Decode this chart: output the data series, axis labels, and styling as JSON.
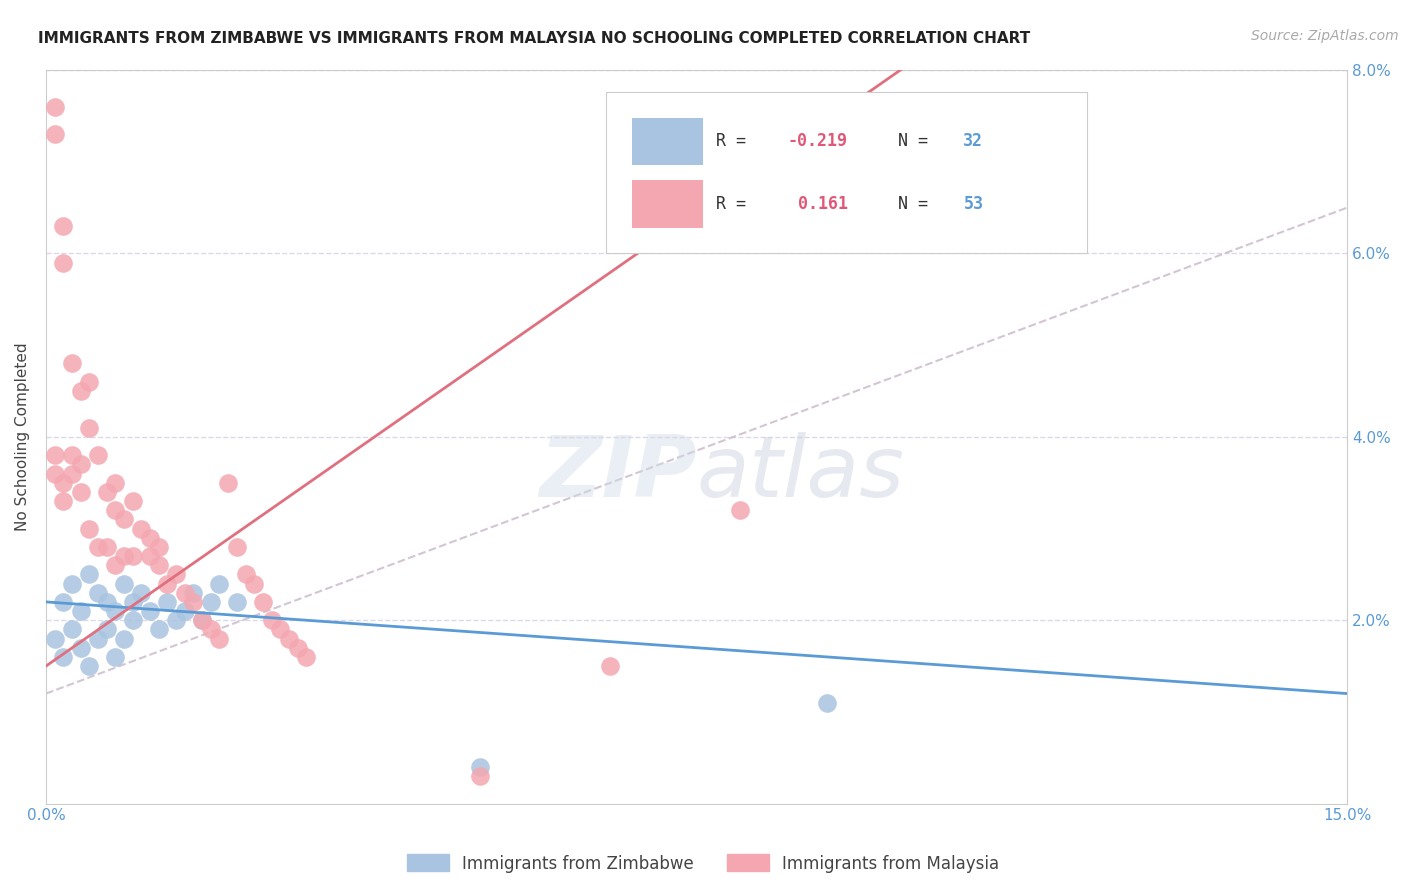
{
  "title": "IMMIGRANTS FROM ZIMBABWE VS IMMIGRANTS FROM MALAYSIA NO SCHOOLING COMPLETED CORRELATION CHART",
  "source": "Source: ZipAtlas.com",
  "ylabel": "No Schooling Completed",
  "xlim": [
    0.0,
    0.15
  ],
  "ylim": [
    0.0,
    0.08
  ],
  "xtick_vals": [
    0.0,
    0.15
  ],
  "xtick_labels": [
    "0.0%",
    "15.0%"
  ],
  "ytick_vals": [
    0.0,
    0.02,
    0.04,
    0.06,
    0.08
  ],
  "ytick_labels_left": [
    "",
    "",
    "",
    "",
    ""
  ],
  "ytick_labels_right": [
    "",
    "2.0%",
    "4.0%",
    "6.0%",
    "8.0%"
  ],
  "watermark": "ZIPatlas",
  "zimbabwe_color": "#a8c4e0",
  "malaysia_color": "#f4a7b0",
  "zimbabwe_line_color": "#5b9bd5",
  "malaysia_line_color": "#e07080",
  "dashed_line_color": "#c8b8c8",
  "background_color": "#ffffff",
  "grid_color": "#ddd8e8",
  "zimbabwe_x": [
    0.001,
    0.002,
    0.002,
    0.003,
    0.003,
    0.004,
    0.004,
    0.005,
    0.005,
    0.006,
    0.006,
    0.007,
    0.007,
    0.008,
    0.008,
    0.009,
    0.009,
    0.01,
    0.01,
    0.011,
    0.012,
    0.013,
    0.014,
    0.015,
    0.016,
    0.017,
    0.018,
    0.019,
    0.02,
    0.022,
    0.05,
    0.09
  ],
  "zimbabwe_y": [
    0.018,
    0.022,
    0.016,
    0.024,
    0.019,
    0.021,
    0.017,
    0.025,
    0.015,
    0.023,
    0.018,
    0.022,
    0.019,
    0.021,
    0.016,
    0.024,
    0.018,
    0.022,
    0.02,
    0.023,
    0.021,
    0.019,
    0.022,
    0.02,
    0.021,
    0.023,
    0.02,
    0.022,
    0.024,
    0.022,
    0.004,
    0.011
  ],
  "malaysia_x": [
    0.001,
    0.001,
    0.001,
    0.001,
    0.002,
    0.002,
    0.002,
    0.002,
    0.003,
    0.003,
    0.003,
    0.004,
    0.004,
    0.004,
    0.005,
    0.005,
    0.005,
    0.006,
    0.006,
    0.007,
    0.007,
    0.008,
    0.008,
    0.008,
    0.009,
    0.009,
    0.01,
    0.01,
    0.011,
    0.012,
    0.012,
    0.013,
    0.013,
    0.014,
    0.015,
    0.016,
    0.017,
    0.018,
    0.019,
    0.02,
    0.021,
    0.022,
    0.023,
    0.024,
    0.025,
    0.026,
    0.027,
    0.028,
    0.029,
    0.03,
    0.05,
    0.065,
    0.08
  ],
  "malaysia_y": [
    0.076,
    0.073,
    0.038,
    0.036,
    0.063,
    0.059,
    0.035,
    0.033,
    0.048,
    0.038,
    0.036,
    0.045,
    0.037,
    0.034,
    0.046,
    0.041,
    0.03,
    0.038,
    0.028,
    0.034,
    0.028,
    0.035,
    0.032,
    0.026,
    0.031,
    0.027,
    0.033,
    0.027,
    0.03,
    0.029,
    0.027,
    0.028,
    0.026,
    0.024,
    0.025,
    0.023,
    0.022,
    0.02,
    0.019,
    0.018,
    0.035,
    0.028,
    0.025,
    0.024,
    0.022,
    0.02,
    0.019,
    0.018,
    0.017,
    0.016,
    0.003,
    0.015,
    0.032
  ],
  "title_fontsize": 11,
  "source_fontsize": 10,
  "axis_fontsize": 11,
  "tick_fontsize": 11,
  "legend_fontsize": 12
}
